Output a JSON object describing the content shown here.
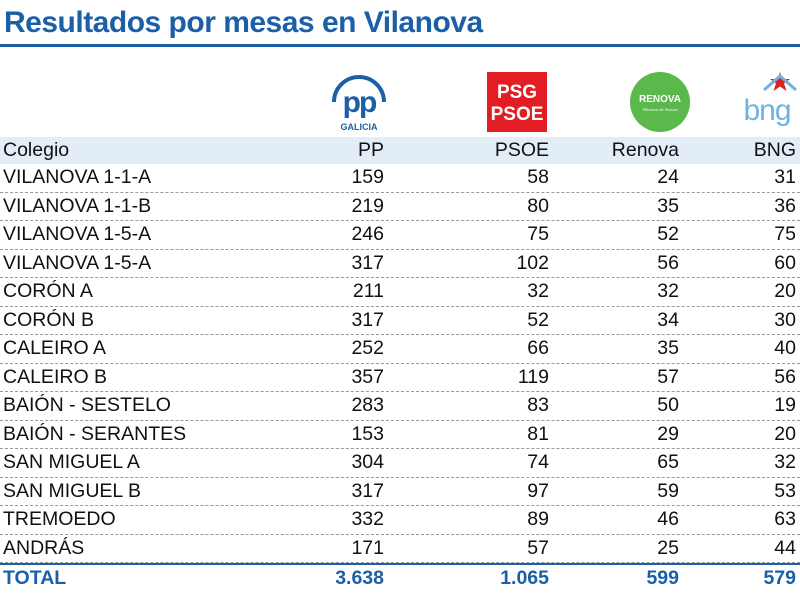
{
  "title": "Resultados por mesas en Vilanova",
  "logos": {
    "pp": {
      "text": "pp",
      "subtext": "GALICIA",
      "color": "#1a5fa8"
    },
    "psoe": {
      "line1": "PSG",
      "line2": "PSOE",
      "color": "#e21d24"
    },
    "renova": {
      "text": "RENOVA",
      "subtext": "Vilanova de Arousa",
      "color": "#5bb84a"
    },
    "bng": {
      "text": "bng",
      "color": "#6fb3e0",
      "star_color": "#e21d24"
    }
  },
  "chart_data": {
    "type": "table",
    "columns": [
      "Colegio",
      "PP",
      "PSOE",
      "Renova",
      "BNG"
    ],
    "rows": [
      [
        "VILANOVA 1-1-A",
        "159",
        "58",
        "24",
        "31"
      ],
      [
        "VILANOVA 1-1-B",
        "219",
        "80",
        "35",
        "36"
      ],
      [
        "VILANOVA 1-5-A",
        "246",
        "75",
        "52",
        "75"
      ],
      [
        "VILANOVA 1-5-A",
        "317",
        "102",
        "56",
        "60"
      ],
      [
        "CORÓN A",
        "211",
        "32",
        "32",
        "20"
      ],
      [
        "CORÓN B",
        "317",
        "52",
        "34",
        "30"
      ],
      [
        "CALEIRO A",
        "252",
        "66",
        "35",
        "40"
      ],
      [
        "CALEIRO B",
        "357",
        "119",
        "57",
        "56"
      ],
      [
        "BAIÓN - SESTELO",
        "283",
        "83",
        "50",
        "19"
      ],
      [
        "BAIÓN - SERANTES",
        "153",
        "81",
        "29",
        "20"
      ],
      [
        "SAN MIGUEL A",
        "304",
        "74",
        "65",
        "32"
      ],
      [
        "SAN MIGUEL B",
        "317",
        "97",
        "59",
        "53"
      ],
      [
        "TREMOEDO",
        "332",
        "89",
        "46",
        "63"
      ],
      [
        "ANDRÁS",
        "171",
        "57",
        "25",
        "44"
      ]
    ],
    "total": [
      "TOTAL",
      "3.638",
      "1.065",
      "599",
      "579"
    ],
    "header_background": "#e2edf7",
    "total_color": "#1a5fa8"
  }
}
